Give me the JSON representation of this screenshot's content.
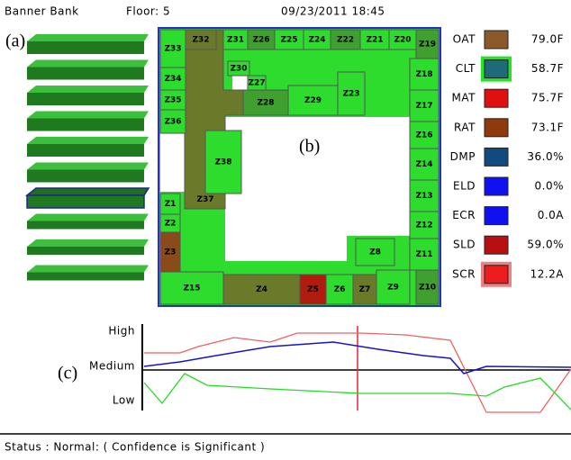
{
  "header": {
    "building": "Banner Bank",
    "floor": "Floor: 5",
    "timestamp": "09/23/2011 18:45"
  },
  "panels": {
    "a": "(a)",
    "b": "(b)",
    "c": "(c)"
  },
  "floor_plan": {
    "zones": [
      "Z33",
      "Z32",
      "Z31",
      "Z26",
      "Z25",
      "Z24",
      "Z22",
      "Z21",
      "Z20",
      "Z19",
      "Z34",
      "Z35",
      "Z36",
      "Z30",
      "Z27",
      "Z28",
      "Z29",
      "Z23",
      "Z18",
      "Z17",
      "Z16",
      "Z14",
      "Z13",
      "Z12",
      "Z11",
      "Z10",
      "Z38",
      "Z37",
      "Z1",
      "Z2",
      "Z3",
      "Z15",
      "Z4",
      "Z5",
      "Z6",
      "Z7",
      "Z9",
      "Z8"
    ]
  },
  "sensors": [
    {
      "name": "OAT",
      "value": "79.0F",
      "color": "#8b5a2b"
    },
    {
      "name": "CLT",
      "value": "58.7F",
      "color": "#1f6a78",
      "border": "#22e622"
    },
    {
      "name": "MAT",
      "value": "75.7F",
      "color": "#e01010"
    },
    {
      "name": "RAT",
      "value": "73.1F",
      "color": "#8e3a0c"
    },
    {
      "name": "DMP",
      "value": "36.0%",
      "color": "#124a80"
    },
    {
      "name": "ELD",
      "value": "0.0%",
      "color": "#1010f0"
    },
    {
      "name": "ECR",
      "value": "0.0A",
      "color": "#1010f0"
    },
    {
      "name": "SLD",
      "value": "59.0%",
      "color": "#b81010"
    },
    {
      "name": "SCR",
      "value": "12.2A",
      "color": "#ee1c1c",
      "border": "#f08080"
    }
  ],
  "trend": {
    "levels": [
      "High",
      "Medium",
      "Low"
    ]
  },
  "status": "Status : Normal: ( Confidence is Significant )"
}
